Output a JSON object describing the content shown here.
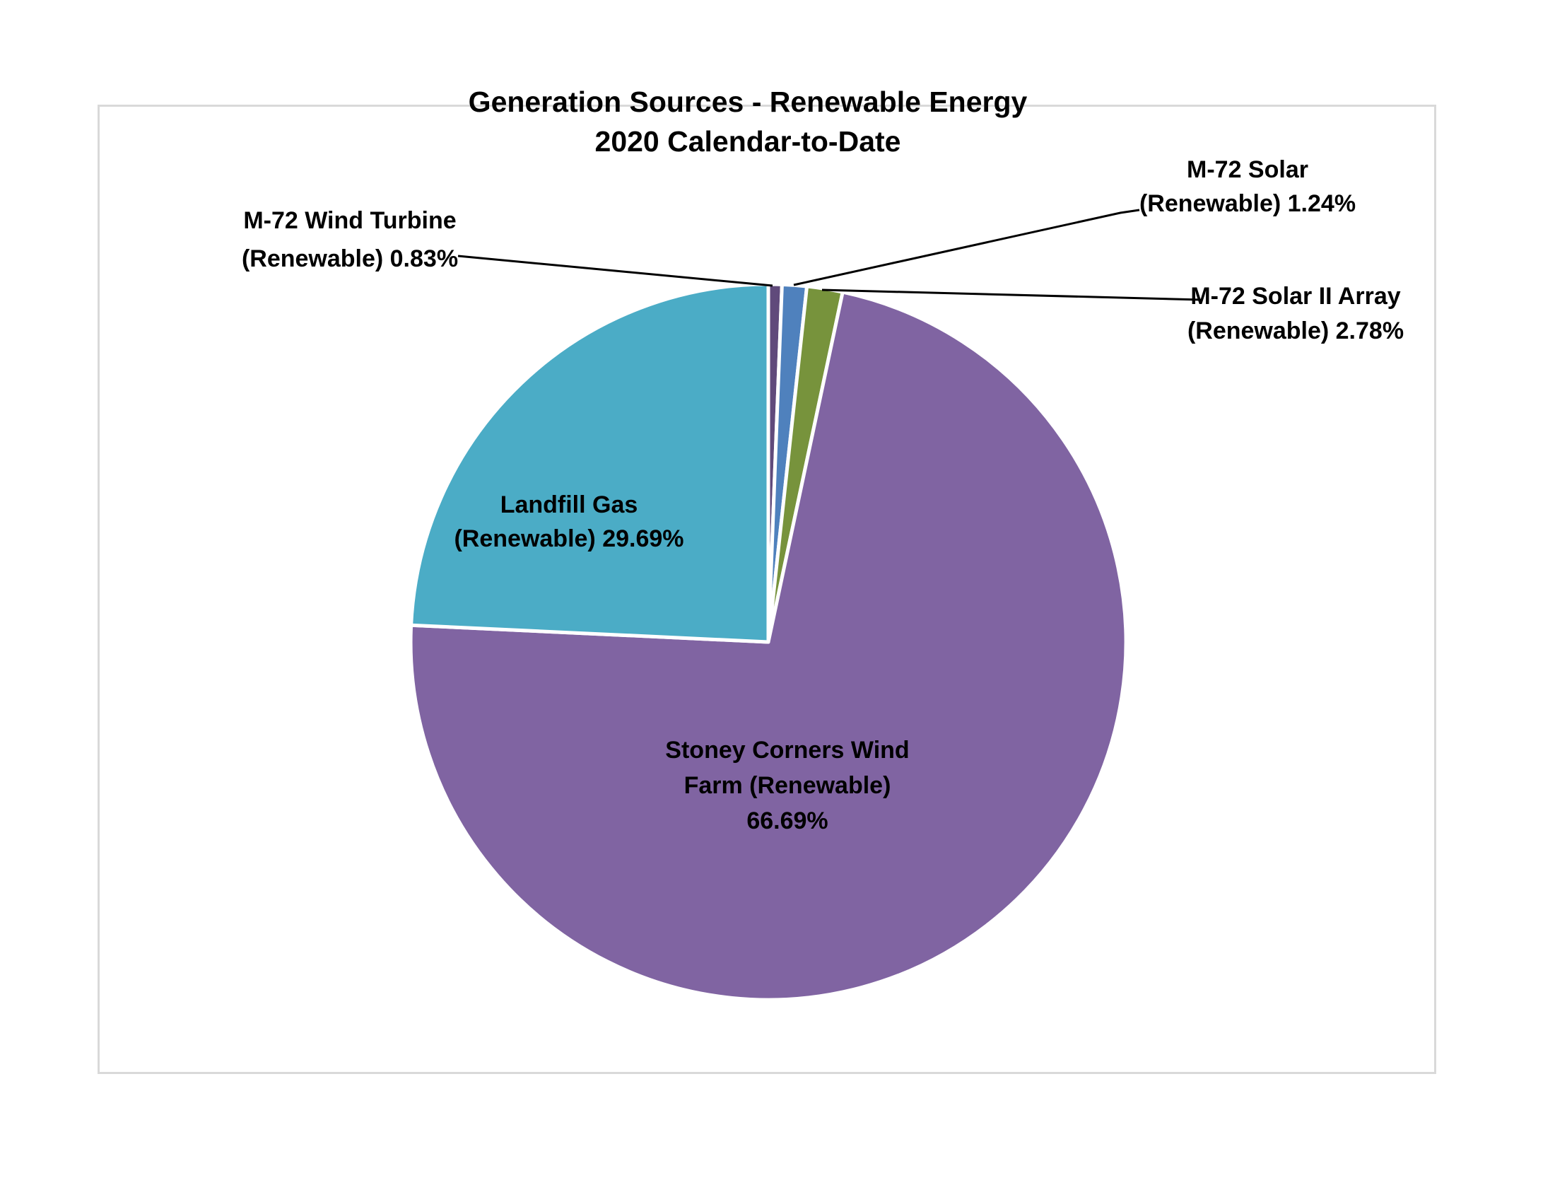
{
  "title": {
    "line1": "Generation Sources - Renewable Energy",
    "line2": "2020 Calendar-to-Date"
  },
  "chart_data": {
    "type": "pie",
    "title": "Generation Sources - Renewable Energy 2020 Calendar-to-Date",
    "legend": "none",
    "label_style": "category name + (Renewable) percentage, small slices called out with leader lines",
    "slices": [
      {
        "label": "M-72 Wind Turbine (Renewable)",
        "pct": 0.83,
        "color": "#604A7B",
        "arc_start_deg": 0.0,
        "arc_end_deg": 2.2
      },
      {
        "label": "M-72 Solar (Renewable)",
        "pct": 1.24,
        "color": "#4F81BD",
        "arc_start_deg": 2.2,
        "arc_end_deg": 6.2
      },
      {
        "label": "M-72 Solar II Array (Renewable)",
        "pct": 2.78,
        "color": "#77933C",
        "arc_start_deg": 6.2,
        "arc_end_deg": 12.0
      },
      {
        "label": "Stoney Corners Wind Farm (Renewable)",
        "pct": 66.69,
        "color": "#8064A2",
        "arc_start_deg": 12.0,
        "arc_end_deg": 272.7
      },
      {
        "label": "Landfill Gas (Renewable)",
        "pct": 29.69,
        "color": "#4BACC6",
        "arc_start_deg": 272.7,
        "arc_end_deg": 360.0
      }
    ]
  },
  "labels": {
    "wind_turbine": {
      "line1": "M-72 Wind Turbine",
      "line2": "(Renewable) 0.83%"
    },
    "solar": {
      "line1": "M-72 Solar",
      "line2": "(Renewable) 1.24%"
    },
    "solar2": {
      "line1": "M-72 Solar II Array",
      "line2": "(Renewable) 2.78%"
    },
    "landfill": {
      "line1": "Landfill Gas",
      "line2": "(Renewable) 29.69%"
    },
    "stoney": {
      "line1": "Stoney Corners Wind",
      "line2": "Farm (Renewable)",
      "line3": "66.69%"
    }
  },
  "colors": {
    "frame_border": "#d9d9d9",
    "leader_line": "#000000",
    "text": "#000000",
    "slice_border": "#ffffff"
  }
}
